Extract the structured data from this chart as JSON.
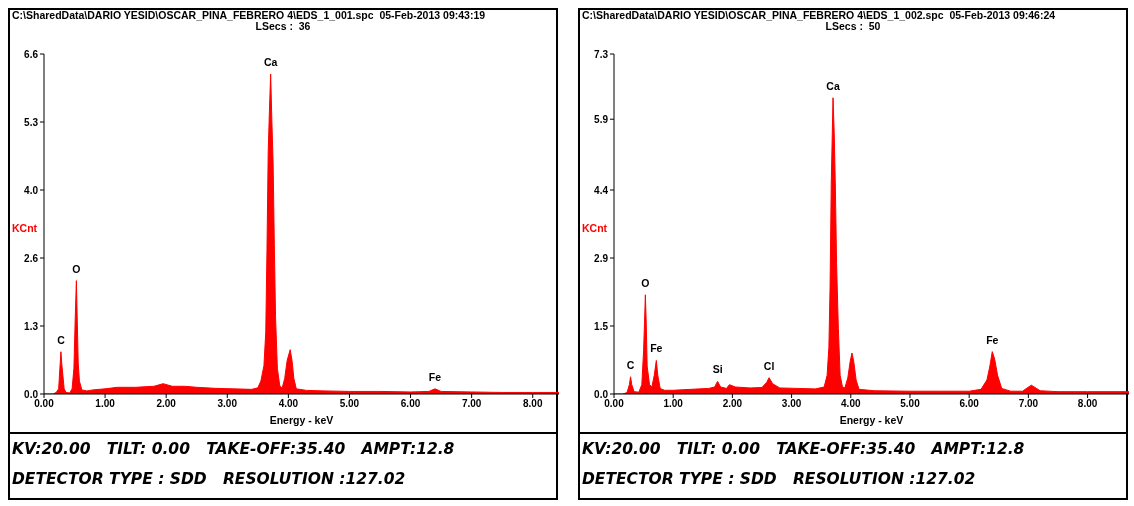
{
  "chart_data": [
    {
      "type": "area",
      "title": "C:\\SharedData\\DARIO YESID\\OSCAR_PINA_FEBRERO 4\\EDS_1_001.spc  05-Feb-2013 09:43:19",
      "subtitle": "LSecs :  36",
      "xlabel": "Energy - keV",
      "ylabel": "KCnt",
      "x": [
        0,
        0.15,
        0.2,
        0.24,
        0.26,
        0.277,
        0.29,
        0.31,
        0.33,
        0.36,
        0.42,
        0.46,
        0.49,
        0.51,
        0.53,
        0.545,
        0.56,
        0.58,
        0.62,
        0.7,
        0.8,
        1.0,
        1.2,
        1.5,
        1.8,
        1.95,
        2.1,
        2.3,
        2.5,
        2.8,
        3.1,
        3.4,
        3.5,
        3.55,
        3.6,
        3.63,
        3.65,
        3.67,
        3.69,
        3.71,
        3.73,
        3.75,
        3.77,
        3.79,
        3.82,
        3.86,
        3.9,
        3.94,
        3.98,
        4.03,
        4.06,
        4.09,
        4.13,
        4.3,
        4.6,
        5.0,
        5.5,
        6.0,
        6.3,
        6.4,
        6.5,
        7.0,
        7.5,
        8.0,
        8.43
      ],
      "series": [
        {
          "color": "#ff0000",
          "values": [
            0,
            0,
            0.03,
            0.1,
            0.5,
            0.82,
            0.6,
            0.35,
            0.1,
            0.03,
            0.02,
            0.1,
            0.5,
            1.43,
            2.2,
            1.4,
            0.6,
            0.25,
            0.08,
            0.06,
            0.08,
            0.1,
            0.13,
            0.13,
            0.15,
            0.2,
            0.15,
            0.15,
            0.13,
            0.11,
            0.1,
            0.09,
            0.12,
            0.25,
            0.55,
            1.2,
            2.8,
            4.7,
            5.5,
            6.21,
            5.3,
            4.5,
            2.9,
            1.5,
            0.5,
            0.15,
            0.12,
            0.3,
            0.65,
            0.86,
            0.65,
            0.3,
            0.1,
            0.07,
            0.06,
            0.05,
            0.05,
            0.04,
            0.05,
            0.1,
            0.05,
            0.04,
            0.03,
            0.03,
            0.03
          ]
        }
      ],
      "xlim": [
        0,
        8.43
      ],
      "xticks": [
        {
          "value": 0,
          "label": "0.00"
        },
        {
          "value": 1,
          "label": "1.00"
        },
        {
          "value": 2,
          "label": "2.00"
        },
        {
          "value": 3,
          "label": "3.00"
        },
        {
          "value": 4,
          "label": "4.00"
        },
        {
          "value": 5,
          "label": "5.00"
        },
        {
          "value": 6,
          "label": "6.00"
        },
        {
          "value": 7,
          "label": "7.00"
        },
        {
          "value": 8,
          "label": "8.00"
        }
      ],
      "ylim": [
        0,
        6.6
      ],
      "yticks": [
        {
          "value": 0,
          "label": "0.0"
        },
        {
          "value": 1.32,
          "label": "1.3"
        },
        {
          "value": 2.64,
          "label": "2.6"
        },
        {
          "value": 3.96,
          "label": "4.0"
        },
        {
          "value": 5.28,
          "label": "5.3"
        },
        6.6
      ],
      "annotations": [
        {
          "text": "C",
          "x": 0.277,
          "y": 0.82
        },
        {
          "text": "O",
          "x": 0.53,
          "y": 2.2
        },
        {
          "text": "Ca",
          "x": 3.71,
          "y": 6.21
        },
        {
          "text": "Fe",
          "x": 6.4,
          "y": 0.1
        },
        "KV:20.00   TILT: 0.00   TAKE-OFF:35.40   AMPT:12.8",
        "DETECTOR TYPE : SDD   RESOLUTION :127.02"
      ]
    },
    {
      "type": "area",
      "title": "C:\\SharedData\\DARIO YESID\\OSCAR_PINA_FEBRERO 4\\EDS_1_002.spc  05-Feb-2013 09:46:24",
      "subtitle": "LSecs :  50",
      "xlabel": "Energy - keV",
      "ylabel": "KCnt",
      "x": [
        0,
        0.15,
        0.22,
        0.26,
        0.28,
        0.3,
        0.34,
        0.42,
        0.47,
        0.5,
        0.515,
        0.53,
        0.545,
        0.56,
        0.6,
        0.64,
        0.68,
        0.715,
        0.74,
        0.78,
        0.85,
        1.0,
        1.3,
        1.6,
        1.7,
        1.75,
        1.8,
        1.9,
        1.95,
        2.05,
        2.3,
        2.5,
        2.58,
        2.62,
        2.68,
        2.8,
        3.1,
        3.4,
        3.55,
        3.6,
        3.63,
        3.65,
        3.67,
        3.7,
        3.72,
        3.74,
        3.76,
        3.79,
        3.82,
        3.86,
        3.9,
        3.95,
        3.99,
        4.02,
        4.05,
        4.09,
        4.14,
        4.4,
        5.0,
        5.5,
        6.0,
        6.2,
        6.3,
        6.35,
        6.39,
        6.43,
        6.48,
        6.55,
        6.7,
        6.9,
        7.05,
        7.2,
        7.5,
        8.0,
        8.7
      ],
      "series": [
        {
          "color": "#ff0000",
          "values": [
            0,
            0,
            0.03,
            0.2,
            0.37,
            0.2,
            0.05,
            0.04,
            0.2,
            0.93,
            1.52,
            2.13,
            1.5,
            0.6,
            0.2,
            0.15,
            0.4,
            0.72,
            0.4,
            0.12,
            0.08,
            0.08,
            0.1,
            0.12,
            0.15,
            0.27,
            0.15,
            0.12,
            0.2,
            0.15,
            0.13,
            0.14,
            0.25,
            0.35,
            0.22,
            0.13,
            0.12,
            0.11,
            0.15,
            0.4,
            1.0,
            2.3,
            4.5,
            6.36,
            5.6,
            4.4,
            2.8,
            1.4,
            0.4,
            0.15,
            0.13,
            0.35,
            0.7,
            0.88,
            0.7,
            0.3,
            0.1,
            0.07,
            0.06,
            0.06,
            0.06,
            0.1,
            0.3,
            0.6,
            0.91,
            0.75,
            0.4,
            0.12,
            0.06,
            0.06,
            0.19,
            0.07,
            0.05,
            0.05,
            0.05
          ]
        }
      ],
      "xlim": [
        0,
        8.7
      ],
      "xticks": [
        {
          "value": 0,
          "label": "0.00"
        },
        {
          "value": 1,
          "label": "1.00"
        },
        {
          "value": 2,
          "label": "2.00"
        },
        {
          "value": 3,
          "label": "3.00"
        },
        {
          "value": 4,
          "label": "4.00"
        },
        {
          "value": 5,
          "label": "5.00"
        },
        {
          "value": 6,
          "label": "6.00"
        },
        {
          "value": 7,
          "label": "7.00"
        },
        {
          "value": 8,
          "label": "8.00"
        }
      ],
      "ylim": [
        0,
        7.3
      ],
      "yticks": [
        {
          "value": 0,
          "label": "0.0"
        },
        {
          "value": 1.46,
          "label": "1.5"
        },
        {
          "value": 2.92,
          "label": "2.9"
        },
        {
          "value": 4.38,
          "label": "4.4"
        },
        {
          "value": 5.9,
          "label": "5.9"
        },
        7.3
      ],
      "annotations": [
        {
          "text": "C",
          "x": 0.28,
          "y": 0.37
        },
        {
          "text": "O",
          "x": 0.53,
          "y": 2.13
        },
        {
          "text": "Fe",
          "x": 0.715,
          "y": 0.72
        },
        {
          "text": "Si",
          "x": 1.75,
          "y": 0.27
        },
        {
          "text": "Cl",
          "x": 2.62,
          "y": 0.35
        },
        {
          "text": "Ca",
          "x": 3.7,
          "y": 6.36
        },
        {
          "text": "Fe",
          "x": 6.39,
          "y": 0.91
        },
        "KV:20.00   TILT: 0.00   TAKE-OFF:35.40   AMPT:12.8",
        "DETECTOR TYPE : SDD   RESOLUTION :127.02"
      ]
    }
  ]
}
